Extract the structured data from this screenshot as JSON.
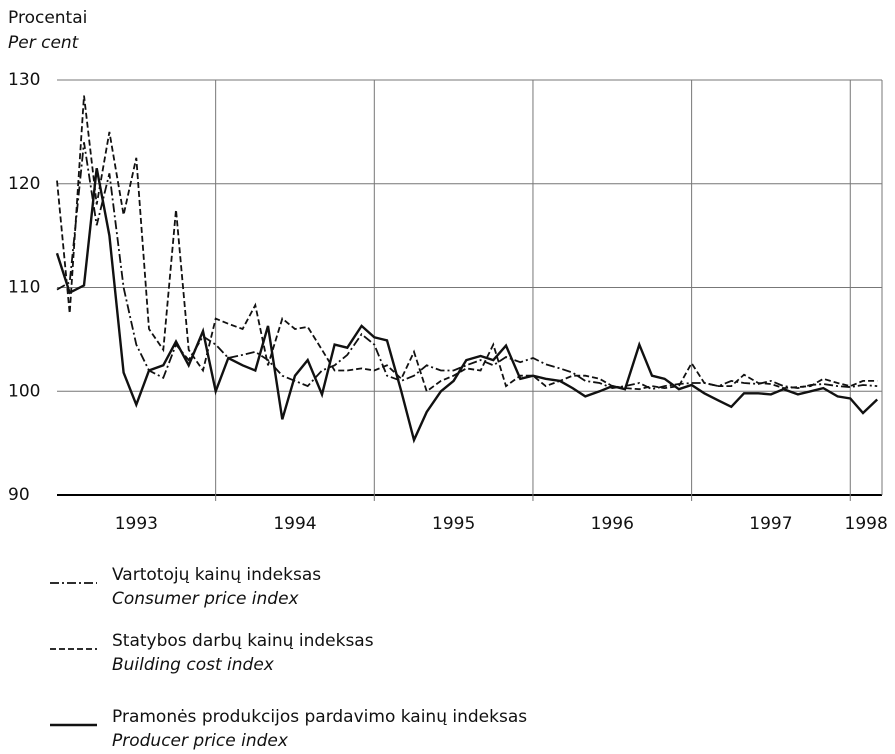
{
  "chart_data": {
    "type": "line",
    "y_label": "Procentai",
    "y_label_en": "Per cent",
    "x": [
      1993,
      1993.08,
      1993.17,
      1993.25,
      1993.33,
      1993.42,
      1993.5,
      1993.58,
      1993.67,
      1993.75,
      1993.83,
      1993.92,
      1994,
      1994.08,
      1994.17,
      1994.25,
      1994.33,
      1994.42,
      1994.5,
      1994.58,
      1994.67,
      1994.75,
      1994.83,
      1994.92,
      1995,
      1995.08,
      1995.17,
      1995.25,
      1995.33,
      1995.42,
      1995.5,
      1995.58,
      1995.67,
      1995.75,
      1995.83,
      1995.92,
      1996,
      1996.08,
      1996.17,
      1996.25,
      1996.33,
      1996.42,
      1996.5,
      1996.58,
      1996.67,
      1996.75,
      1996.83,
      1996.92,
      1997,
      1997.08,
      1997.17,
      1997.25,
      1997.33,
      1997.42,
      1997.5,
      1997.58,
      1997.67,
      1997.75,
      1997.83,
      1997.92,
      1998,
      1998.08,
      1998.17
    ],
    "xlim": [
      1993,
      1998.2
    ],
    "xticks": [
      1994,
      1995,
      1996,
      1997,
      1998
    ],
    "year_labels": [
      "1993",
      "1994",
      "1995",
      "1996",
      "1997",
      "1998"
    ],
    "ylim": [
      90,
      130
    ],
    "yticks": [
      90,
      100,
      110,
      120,
      130
    ],
    "grid": true,
    "series": [
      {
        "name": "Vartotojų kainų indeksas",
        "name_en": "Consumer price index",
        "color": "#111",
        "dash": "9,3,2,3",
        "values": [
          109.8,
          110.5,
          124,
          116,
          121,
          110,
          104.5,
          102,
          101.3,
          104.5,
          103,
          105.3,
          104.5,
          103.2,
          103.5,
          103.8,
          103,
          101.5,
          101,
          100.5,
          102,
          102.5,
          103.5,
          105.5,
          104.5,
          101.5,
          101,
          101.5,
          102.5,
          102,
          102,
          102.5,
          103,
          102.5,
          103.3,
          102.8,
          103.2,
          102.6,
          102.2,
          101.8,
          101,
          100.8,
          100.3,
          100.5,
          100.8,
          100.2,
          100.5,
          100.7,
          100.8,
          100.8,
          100.5,
          101,
          100.8,
          100.7,
          101,
          100.5,
          100.3,
          100.6,
          100.7,
          100.5,
          100.4,
          100.6,
          100.5
        ]
      },
      {
        "name": "Statybos darbų kainų indeksas",
        "name_en": "Building cost index",
        "color": "#111",
        "dash": "6,3",
        "values": [
          120.3,
          107.5,
          128.5,
          118,
          125,
          117,
          122.5,
          106,
          104,
          117.5,
          104,
          102,
          107,
          106.5,
          106,
          108.3,
          102.5,
          107,
          106,
          106.2,
          104,
          102,
          102,
          102.2,
          102,
          102.5,
          101.2,
          103.8,
          100,
          101,
          101.5,
          102.2,
          102,
          104.5,
          100.5,
          101.5,
          101.5,
          100.5,
          101,
          101.5,
          101.5,
          101.2,
          100.5,
          100.3,
          100.2,
          100.5,
          100.3,
          100.5,
          102.7,
          100.8,
          100.5,
          100.5,
          101.6,
          100.8,
          100.7,
          100.3,
          100.4,
          100.5,
          101.2,
          100.8,
          100.5,
          101,
          101
        ]
      },
      {
        "name": "Pramonės produkcijos pardavimo kainų indeksas",
        "name_en": "Producer price index",
        "color": "#111",
        "dash": "none",
        "values": [
          113.3,
          109.5,
          110.2,
          121.5,
          115,
          101.8,
          98.7,
          102,
          102.5,
          104.8,
          102.5,
          105.8,
          100,
          103.2,
          102.5,
          102,
          106.3,
          97.3,
          101.5,
          103,
          99.7,
          104.5,
          104.2,
          106.3,
          105.2,
          104.9,
          100,
          95.3,
          98,
          100,
          101,
          103,
          103.4,
          103,
          104.4,
          101.2,
          101.5,
          101.2,
          101,
          100.3,
          99.5,
          100,
          100.5,
          100.2,
          104.5,
          101.5,
          101.2,
          100.2,
          100.6,
          99.8,
          99.1,
          98.5,
          99.8,
          99.8,
          99.7,
          100.2,
          99.7,
          100,
          100.3,
          99.5,
          99.3,
          97.9,
          99.2
        ]
      }
    ]
  }
}
